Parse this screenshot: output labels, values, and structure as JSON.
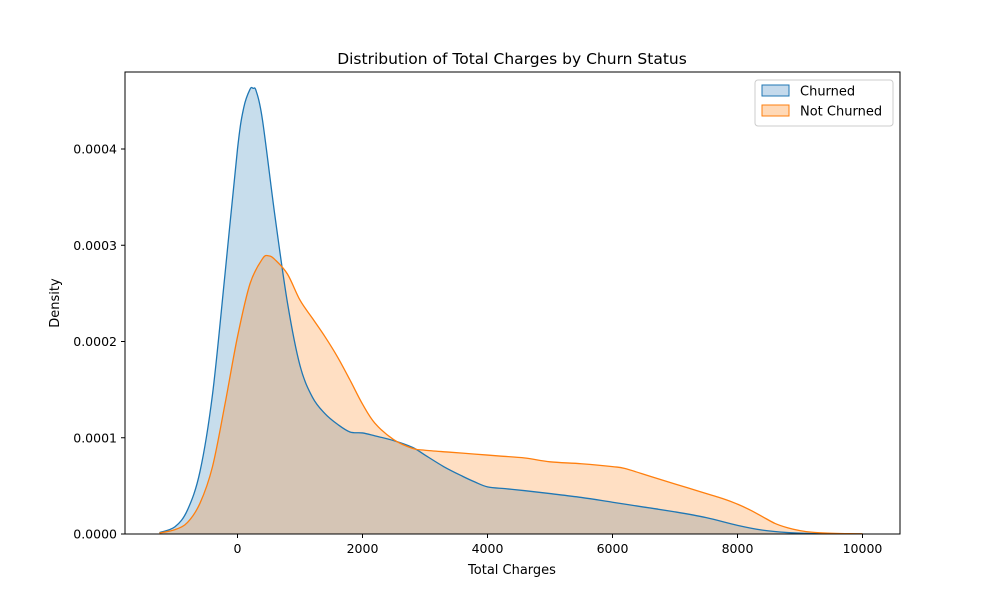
{
  "chart_data": {
    "type": "area",
    "title": "Distribution of Total Charges by Churn Status",
    "xlabel": "Total Charges",
    "ylabel": "Density",
    "xlim": [
      -1800,
      10600
    ],
    "ylim": [
      0,
      0.00048
    ],
    "xticks": [
      0,
      2000,
      4000,
      6000,
      8000,
      10000
    ],
    "xtick_labels": [
      "0",
      "2000",
      "4000",
      "6000",
      "8000",
      "10000"
    ],
    "yticks": [
      0,
      0.0001,
      0.0002,
      0.0003,
      0.0004
    ],
    "ytick_labels": [
      "0.0000",
      "0.0001",
      "0.0002",
      "0.0003",
      "0.0004"
    ],
    "grid": false,
    "legend_position": "top-right",
    "series": [
      {
        "name": "Churned",
        "color": "#1f77b4",
        "fill": "#c5daec",
        "x": [
          -1250,
          -1000,
          -800,
          -600,
          -400,
          -200,
          0,
          100,
          200,
          250,
          300,
          400,
          600,
          800,
          1000,
          1200,
          1400,
          1600,
          1800,
          2000,
          2200,
          2500,
          2800,
          3000,
          3300,
          3600,
          3800,
          4000,
          4300,
          4600,
          5000,
          5500,
          6000,
          6500,
          7000,
          7500,
          8000,
          8400,
          8800,
          9200,
          9600,
          10000
        ],
        "y": [
          1.5e-06,
          7.5e-06,
          2.5e-05,
          6.5e-05,
          0.000145,
          0.00027,
          0.0004,
          0.000443,
          0.000462,
          0.000463,
          0.00046,
          0.00043,
          0.00033,
          0.00024,
          0.000175,
          0.000142,
          0.000125,
          0.000114,
          0.000106,
          0.000105,
          0.000102,
          9.7e-05,
          9e-05,
          8.2e-05,
          7e-05,
          6e-05,
          5.4e-05,
          4.9e-05,
          4.7e-05,
          4.5e-05,
          4.2e-05,
          3.8e-05,
          3.3e-05,
          2.8e-05,
          2.3e-05,
          1.7e-05,
          9e-06,
          4e-06,
          1.5e-06,
          5e-07,
          2e-07,
          1e-07
        ]
      },
      {
        "name": "Not Churned",
        "color": "#ff7f0e",
        "fill": "#ffd9b7",
        "x": [
          -1250,
          -1000,
          -800,
          -600,
          -400,
          -200,
          0,
          200,
          400,
          500,
          600,
          800,
          1000,
          1200,
          1400,
          1600,
          1800,
          2000,
          2200,
          2500,
          2800,
          3000,
          3400,
          3800,
          4200,
          4600,
          5000,
          5500,
          6000,
          6200,
          6600,
          7000,
          7400,
          7800,
          8000,
          8200,
          8400,
          8600,
          8800,
          9000,
          9200,
          9500,
          9800,
          10000
        ],
        "y": [
          1e-06,
          4.5e-06,
          1.2e-05,
          3.2e-05,
          7e-05,
          0.000135,
          0.000205,
          0.00026,
          0.000286,
          0.000289,
          0.000285,
          0.00027,
          0.000243,
          0.000224,
          0.000205,
          0.000184,
          0.00016,
          0.000135,
          0.000115,
          9.8e-05,
          8.9e-05,
          8.7e-05,
          8.5e-05,
          8.3e-05,
          8.1e-05,
          7.9e-05,
          7.5e-05,
          7.3e-05,
          7e-05,
          6.8e-05,
          6e-05,
          5.2e-05,
          4.4e-05,
          3.6e-05,
          3.1e-05,
          2.5e-05,
          1.8e-05,
          1.1e-05,
          6.5e-06,
          3.5e-06,
          1.8e-06,
          8e-07,
          3e-07,
          2e-07
        ]
      }
    ]
  }
}
